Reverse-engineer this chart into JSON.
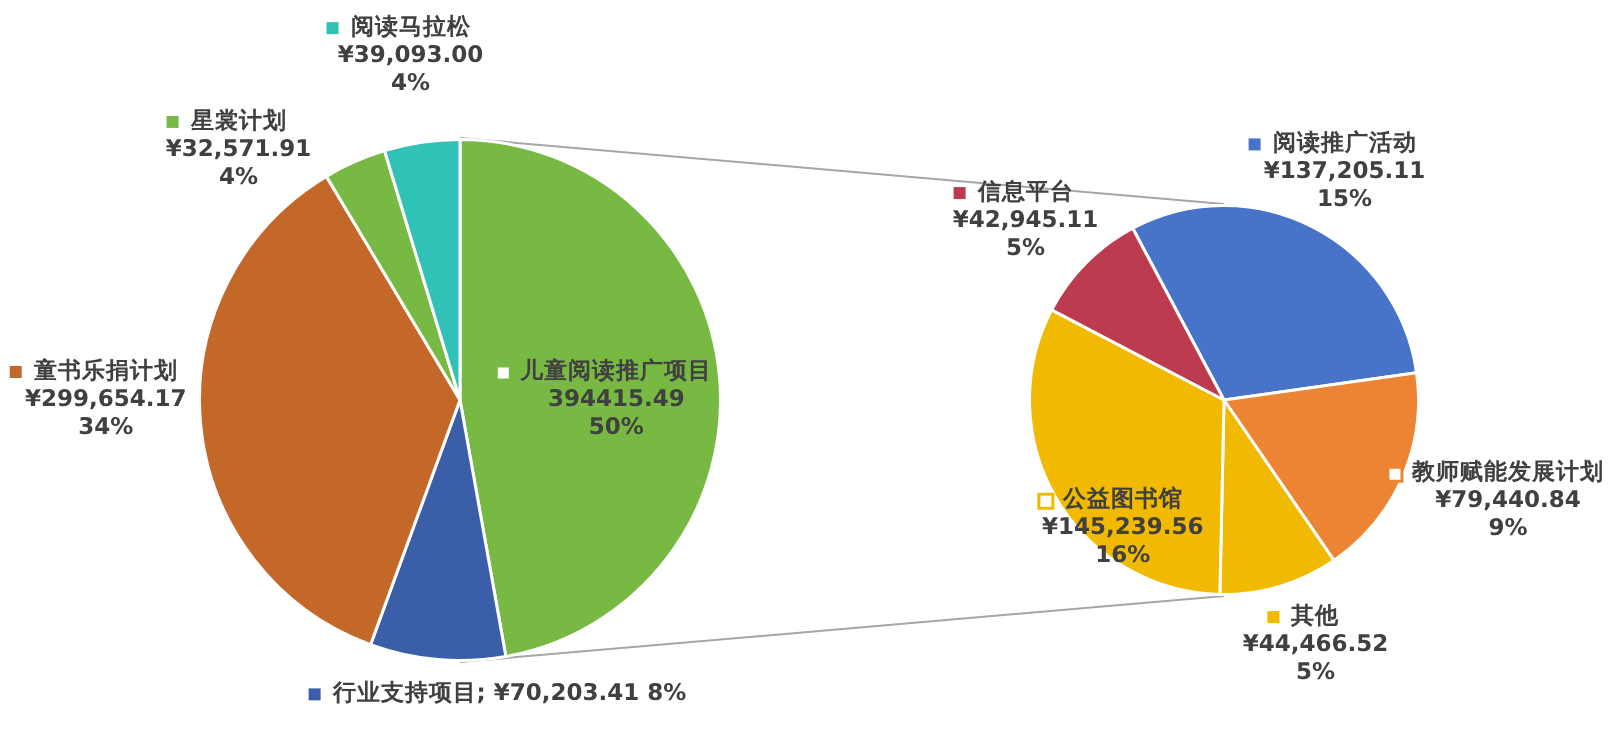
{
  "chart_data": [
    {
      "type": "pie",
      "categories": [
        "儿童阅读推广项目",
        "行业支持项目",
        "童书乐捐计划",
        "星裳计划",
        "阅读马拉松"
      ],
      "values": [
        394415.49,
        70203.41,
        299654.17,
        32571.91,
        39093.0
      ],
      "colors": [
        "#78b944",
        "#3b5ea8",
        "#c4682a",
        "#78b944",
        "#30c2b6"
      ],
      "value_labels": [
        "394415.49 50%",
        "; ¥70,203.41 8%",
        "¥299,654.17 34%",
        "¥32,571.91 4%",
        "¥39,093.00 4%"
      ],
      "legend": true
    },
    {
      "type": "pie",
      "categories": [
        "阅读推广活动",
        "教师赋能发展计划",
        "其他",
        "公益图书馆",
        "信息平台"
      ],
      "values": [
        137205.11,
        79440.84,
        44466.52,
        145239.56,
        42945.11
      ],
      "colors": [
        "#4774c9",
        "#ed8433",
        "#f1b900",
        "#f1b900",
        "#bd3b4e"
      ],
      "value_labels": [
        "¥137,205.11 15%",
        "¥79,440.84 9%",
        "¥44,466.52 5%",
        "¥145,239.56 16%",
        "¥42,945.11 5%"
      ],
      "legend": true
    }
  ]
}
